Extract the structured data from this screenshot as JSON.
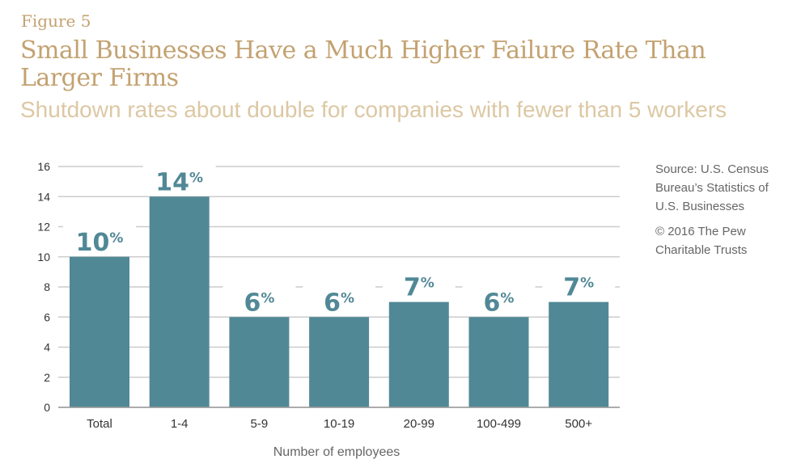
{
  "figure_label": "Figure 5",
  "source": "Source: U.S. Census Bureau’s Statistics of U.S. Businesses",
  "copyright": "© 2016 The Pew Charitable Trusts",
  "colors": {
    "bar": "#518896",
    "title": "#c3a271",
    "subtitle": "#dcc8a4",
    "grid": "#cccccc"
  },
  "chart_data": {
    "type": "bar",
    "title": "Small Businesses Have a Much Higher Failure Rate Than Larger Firms",
    "subtitle": "Shutdown rates about double for companies with fewer than 5 workers",
    "xlabel": "Number of employees",
    "ylabel": "",
    "categories": [
      "Total",
      "1-4",
      "5-9",
      "10-19",
      "20-99",
      "100-499",
      "500+"
    ],
    "values": [
      10,
      14,
      6,
      6,
      7,
      6,
      7
    ],
    "data_labels": [
      "10%",
      "14%",
      "6%",
      "6%",
      "7%",
      "6%",
      "7%"
    ],
    "ylim": [
      0,
      16
    ],
    "yticks": [
      0,
      2,
      4,
      6,
      8,
      10,
      12,
      14,
      16
    ],
    "grid": true,
    "legend": "none"
  }
}
